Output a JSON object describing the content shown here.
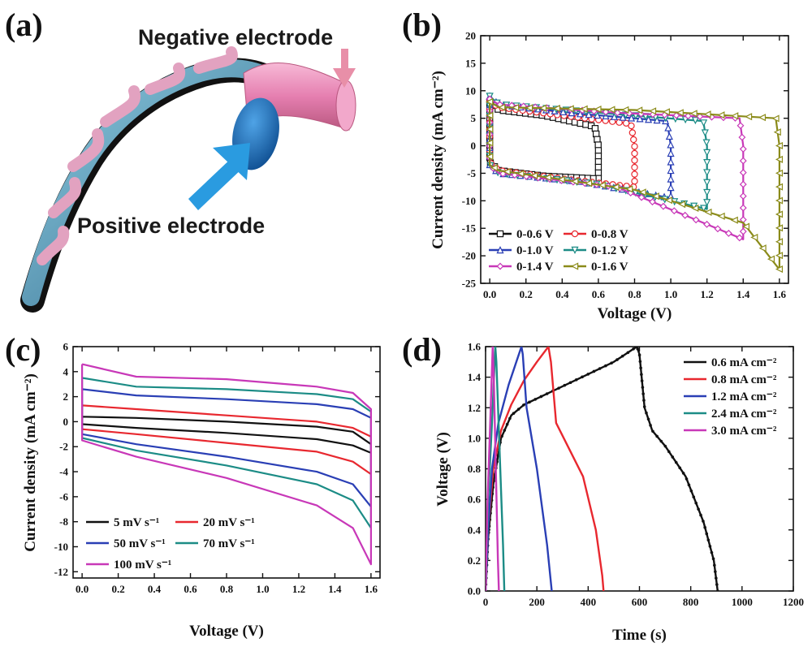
{
  "panel_labels": [
    "(a)",
    "(b)",
    "(c)",
    "(d)"
  ],
  "panel_a": {
    "negative_label": "Negative electrode",
    "positive_label": "Positive electrode",
    "colors": {
      "negative_tube": "#e57fb0",
      "positive_disc": "#1a78c8",
      "arrow_negative": "#e88fa8",
      "arrow_positive": "#2a9be0"
    }
  },
  "chart_data": [
    {
      "id": "b",
      "type": "line",
      "xlabel": "Voltage (V)",
      "ylabel": "Current density (mA cm⁻²)",
      "xlim": [
        -0.05,
        1.65
      ],
      "ylim": [
        -25,
        20
      ],
      "xticks": [
        0.0,
        0.2,
        0.4,
        0.6,
        0.8,
        1.0,
        1.2,
        1.4,
        1.6
      ],
      "yticks": [
        -25,
        -20,
        -15,
        -10,
        -5,
        0,
        5,
        10,
        15,
        20
      ],
      "xtick_labels": [
        "0.0",
        "0.2",
        "0.4",
        "0.6",
        "0.8",
        "1.0",
        "1.2",
        "1.4",
        "1.6"
      ],
      "ytick_labels": [
        "-25",
        "-20",
        "-15",
        "-10",
        "-5",
        "0",
        "5",
        "10",
        "15",
        "20"
      ],
      "legend_position": "bottom-left",
      "series": [
        {
          "name": "0-0.6 V",
          "color": "#111111",
          "marker": "square",
          "vmax": 0.6,
          "upper": [
            [
              0.0,
              8.0
            ],
            [
              0.05,
              6.5
            ],
            [
              0.3,
              5.5
            ],
            [
              0.58,
              3.5
            ],
            [
              0.6,
              0.0
            ],
            [
              0.6,
              -5.5
            ]
          ],
          "lower": [
            [
              0.0,
              -3.0
            ],
            [
              0.05,
              -4.5
            ],
            [
              0.3,
              -5.5
            ],
            [
              0.6,
              -6.0
            ]
          ]
        },
        {
          "name": "0-0.8 V",
          "color": "#e8282f",
          "marker": "circle",
          "vmax": 0.8,
          "upper": [
            [
              0.0,
              8.0
            ],
            [
              0.05,
              7.0
            ],
            [
              0.4,
              5.5
            ],
            [
              0.78,
              4.0
            ],
            [
              0.8,
              0.0
            ],
            [
              0.8,
              -7.0
            ]
          ],
          "lower": [
            [
              0.0,
              -3.0
            ],
            [
              0.05,
              -4.5
            ],
            [
              0.4,
              -6.0
            ],
            [
              0.8,
              -7.5
            ]
          ]
        },
        {
          "name": "0-1.0 V",
          "color": "#2a3fb5",
          "marker": "triangle-up",
          "vmax": 1.0,
          "upper": [
            [
              0.0,
              9.0
            ],
            [
              0.05,
              7.5
            ],
            [
              0.5,
              5.8
            ],
            [
              0.98,
              4.5
            ],
            [
              1.0,
              0.0
            ],
            [
              1.0,
              -9.0
            ]
          ],
          "lower": [
            [
              0.0,
              -3.5
            ],
            [
              0.05,
              -5.0
            ],
            [
              0.5,
              -6.5
            ],
            [
              1.0,
              -9.5
            ]
          ]
        },
        {
          "name": "0-1.2 V",
          "color": "#1c8c86",
          "marker": "triangle-down",
          "vmax": 1.2,
          "upper": [
            [
              0.0,
              9.0
            ],
            [
              0.05,
              7.5
            ],
            [
              0.6,
              6.0
            ],
            [
              1.18,
              4.5
            ],
            [
              1.2,
              0.0
            ],
            [
              1.2,
              -11.0
            ]
          ],
          "lower": [
            [
              0.0,
              -3.5
            ],
            [
              0.05,
              -5.0
            ],
            [
              0.6,
              -7.0
            ],
            [
              1.2,
              -11.5
            ]
          ]
        },
        {
          "name": "0-1.4 V",
          "color": "#c838b8",
          "marker": "diamond",
          "vmax": 1.4,
          "upper": [
            [
              0.0,
              8.5
            ],
            [
              0.05,
              7.5
            ],
            [
              0.7,
              6.0
            ],
            [
              1.38,
              5.0
            ],
            [
              1.4,
              0.0
            ],
            [
              1.4,
              -16.0
            ]
          ],
          "lower": [
            [
              0.0,
              -3.5
            ],
            [
              0.05,
              -5.0
            ],
            [
              0.7,
              -7.5
            ],
            [
              1.4,
              -17.0
            ]
          ]
        },
        {
          "name": "0-1.6 V",
          "color": "#8b8b1a",
          "marker": "triangle-left",
          "vmax": 1.6,
          "upper": [
            [
              0.0,
              8.0
            ],
            [
              0.05,
              7.0
            ],
            [
              0.8,
              6.5
            ],
            [
              1.58,
              5.0
            ],
            [
              1.6,
              0.0
            ],
            [
              1.6,
              -22.0
            ]
          ],
          "lower": [
            [
              0.0,
              -3.5
            ],
            [
              0.05,
              -4.5
            ],
            [
              0.8,
              -8.0
            ],
            [
              1.4,
              -14.0
            ],
            [
              1.6,
              -22.5
            ]
          ]
        }
      ]
    },
    {
      "id": "c",
      "type": "line",
      "xlabel": "Voltage (V)",
      "ylabel": "Current density (mA cm⁻²)",
      "xlim": [
        -0.05,
        1.65
      ],
      "ylim": [
        -12.5,
        6
      ],
      "xticks": [
        0.0,
        0.2,
        0.4,
        0.6,
        0.8,
        1.0,
        1.2,
        1.4,
        1.6
      ],
      "yticks": [
        -12,
        -10,
        -8,
        -6,
        -4,
        -2,
        0,
        2,
        4,
        6
      ],
      "xtick_labels": [
        "0.0",
        "0.2",
        "0.4",
        "0.6",
        "0.8",
        "1.0",
        "1.2",
        "1.4",
        "1.6"
      ],
      "ytick_labels": [
        "-12",
        "-10",
        "-8",
        "-6",
        "-4",
        "-2",
        "0",
        "2",
        "4",
        "6"
      ],
      "legend_position": "bottom-left",
      "series": [
        {
          "name": "5 mV s⁻¹",
          "color": "#111111",
          "upper": [
            [
              0.0,
              0.4
            ],
            [
              0.3,
              0.3
            ],
            [
              0.8,
              0.0
            ],
            [
              1.3,
              -0.4
            ],
            [
              1.5,
              -0.8
            ],
            [
              1.6,
              -1.8
            ]
          ],
          "lower": [
            [
              0.0,
              -0.2
            ],
            [
              0.3,
              -0.5
            ],
            [
              0.8,
              -0.9
            ],
            [
              1.3,
              -1.4
            ],
            [
              1.5,
              -1.9
            ],
            [
              1.6,
              -2.5
            ]
          ]
        },
        {
          "name": "20 mV s⁻¹",
          "color": "#e8282f",
          "upper": [
            [
              0.0,
              1.3
            ],
            [
              0.3,
              1.0
            ],
            [
              0.8,
              0.5
            ],
            [
              1.3,
              0.0
            ],
            [
              1.5,
              -0.5
            ],
            [
              1.6,
              -1.2
            ]
          ],
          "lower": [
            [
              0.0,
              -0.6
            ],
            [
              0.3,
              -1.0
            ],
            [
              0.8,
              -1.7
            ],
            [
              1.3,
              -2.4
            ],
            [
              1.5,
              -3.2
            ],
            [
              1.6,
              -4.2
            ]
          ]
        },
        {
          "name": "50 mV s⁻¹",
          "color": "#2a3fb5",
          "upper": [
            [
              0.0,
              2.6
            ],
            [
              0.3,
              2.1
            ],
            [
              0.8,
              1.8
            ],
            [
              1.3,
              1.4
            ],
            [
              1.5,
              1.0
            ],
            [
              1.6,
              0.3
            ]
          ],
          "lower": [
            [
              0.0,
              -1.0
            ],
            [
              0.3,
              -1.8
            ],
            [
              0.8,
              -2.8
            ],
            [
              1.3,
              -4.0
            ],
            [
              1.5,
              -5.0
            ],
            [
              1.6,
              -6.8
            ]
          ]
        },
        {
          "name": "70 mV s⁻¹",
          "color": "#1c8c86",
          "upper": [
            [
              0.0,
              3.5
            ],
            [
              0.3,
              2.8
            ],
            [
              0.8,
              2.6
            ],
            [
              1.3,
              2.2
            ],
            [
              1.5,
              1.8
            ],
            [
              1.6,
              0.8
            ]
          ],
          "lower": [
            [
              0.0,
              -1.3
            ],
            [
              0.3,
              -2.3
            ],
            [
              0.8,
              -3.5
            ],
            [
              1.3,
              -5.0
            ],
            [
              1.5,
              -6.3
            ],
            [
              1.6,
              -8.5
            ]
          ]
        },
        {
          "name": "100 mV s⁻¹",
          "color": "#c838b8",
          "upper": [
            [
              0.0,
              4.6
            ],
            [
              0.3,
              3.6
            ],
            [
              0.8,
              3.4
            ],
            [
              1.3,
              2.8
            ],
            [
              1.5,
              2.3
            ],
            [
              1.6,
              1.0
            ]
          ],
          "lower": [
            [
              0.0,
              -1.5
            ],
            [
              0.3,
              -2.8
            ],
            [
              0.8,
              -4.5
            ],
            [
              1.3,
              -6.7
            ],
            [
              1.5,
              -8.5
            ],
            [
              1.6,
              -11.4
            ]
          ]
        }
      ]
    },
    {
      "id": "d",
      "type": "line",
      "xlabel": "Time (s)",
      "ylabel": "Voltage (V)",
      "xlim": [
        0,
        1200
      ],
      "ylim": [
        0,
        1.6
      ],
      "xticks": [
        0,
        200,
        400,
        600,
        800,
        1000,
        1200
      ],
      "yticks": [
        0.0,
        0.2,
        0.4,
        0.6,
        0.8,
        1.0,
        1.2,
        1.4,
        1.6
      ],
      "xtick_labels": [
        "0",
        "200",
        "400",
        "600",
        "800",
        "1000",
        "1200"
      ],
      "ytick_labels": [
        "0.0",
        "0.2",
        "0.4",
        "0.6",
        "0.8",
        "1.0",
        "1.2",
        "1.4",
        "1.6"
      ],
      "legend_position": "top-right",
      "series": [
        {
          "name": "0.6 mA cm⁻²",
          "color": "#111111",
          "points": [
            [
              0,
              0.0
            ],
            [
              10,
              0.35
            ],
            [
              30,
              0.7
            ],
            [
              60,
              1.0
            ],
            [
              100,
              1.15
            ],
            [
              150,
              1.22
            ],
            [
              250,
              1.3
            ],
            [
              400,
              1.42
            ],
            [
              500,
              1.5
            ],
            [
              590,
              1.6
            ],
            [
              600,
              1.55
            ],
            [
              620,
              1.2
            ],
            [
              650,
              1.05
            ],
            [
              700,
              0.95
            ],
            [
              780,
              0.75
            ],
            [
              850,
              0.45
            ],
            [
              890,
              0.2
            ],
            [
              905,
              0.0
            ]
          ]
        },
        {
          "name": "0.8 mA cm⁻²",
          "color": "#e8282f",
          "points": [
            [
              0,
              0.0
            ],
            [
              10,
              0.4
            ],
            [
              30,
              0.8
            ],
            [
              60,
              1.05
            ],
            [
              100,
              1.22
            ],
            [
              150,
              1.38
            ],
            [
              200,
              1.5
            ],
            [
              245,
              1.6
            ],
            [
              255,
              1.5
            ],
            [
              275,
              1.1
            ],
            [
              320,
              0.95
            ],
            [
              380,
              0.75
            ],
            [
              430,
              0.4
            ],
            [
              455,
              0.1
            ],
            [
              460,
              0.0
            ]
          ]
        },
        {
          "name": "1.2 mA cm⁻²",
          "color": "#2a3fb5",
          "points": [
            [
              0,
              0.0
            ],
            [
              10,
              0.4
            ],
            [
              25,
              0.8
            ],
            [
              50,
              1.1
            ],
            [
              90,
              1.35
            ],
            [
              140,
              1.6
            ],
            [
              145,
              1.55
            ],
            [
              160,
              1.2
            ],
            [
              200,
              0.8
            ],
            [
              240,
              0.3
            ],
            [
              258,
              0.0
            ]
          ]
        },
        {
          "name": "2.4 mA cm⁻²",
          "color": "#1c8c86",
          "points": [
            [
              0,
              0.0
            ],
            [
              10,
              0.6
            ],
            [
              25,
              1.1
            ],
            [
              38,
              1.6
            ],
            [
              42,
              1.5
            ],
            [
              55,
              0.9
            ],
            [
              68,
              0.3
            ],
            [
              73,
              0.0
            ]
          ]
        },
        {
          "name": "3.0 mA cm⁻²",
          "color": "#c838b8",
          "points": [
            [
              0,
              0.0
            ],
            [
              8,
              0.6
            ],
            [
              18,
              1.1
            ],
            [
              28,
              1.6
            ],
            [
              32,
              1.4
            ],
            [
              40,
              0.8
            ],
            [
              48,
              0.2
            ],
            [
              52,
              0.0
            ]
          ]
        }
      ]
    }
  ]
}
